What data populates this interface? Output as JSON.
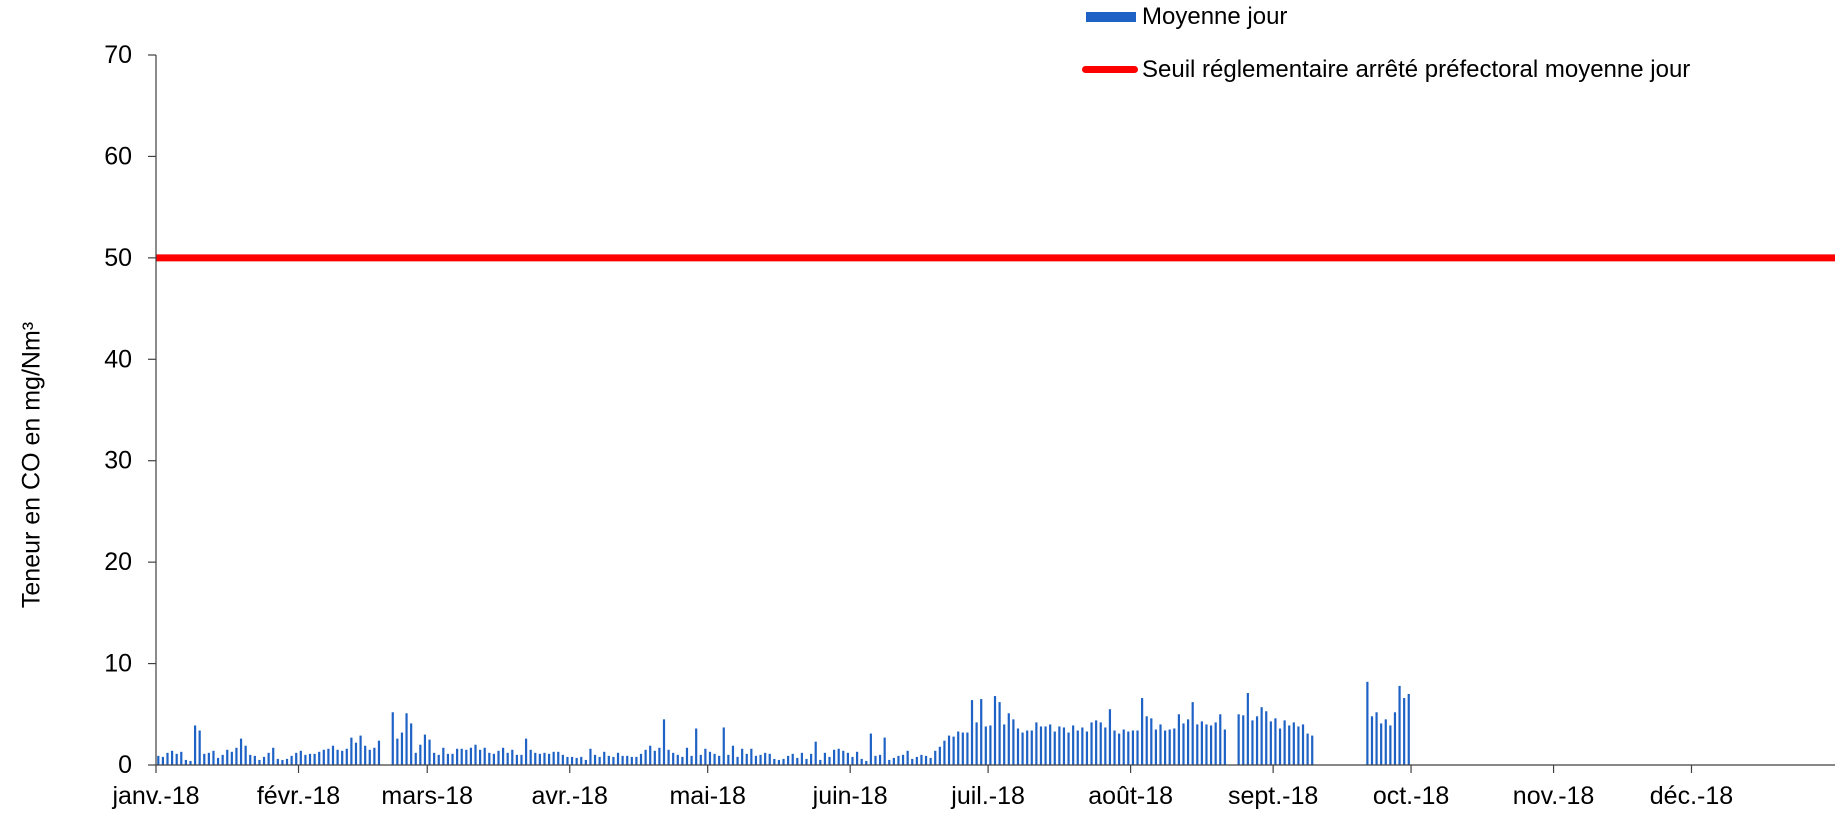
{
  "chart_data": {
    "type": "bar",
    "ylabel": "Teneur en CO en mg/Nm³",
    "xlim": [
      "2018-01-01",
      "2019-01-01"
    ],
    "ylim": [
      0,
      70
    ],
    "grid": false,
    "legend": {
      "position": "top-right"
    },
    "y_ticks": [
      0,
      10,
      20,
      30,
      40,
      50,
      60,
      70
    ],
    "x_ticks": [
      {
        "date": "2018-01-01",
        "label": "janv.-18"
      },
      {
        "date": "2018-02-01",
        "label": "févr.-18"
      },
      {
        "date": "2018-03-01",
        "label": "mars-18"
      },
      {
        "date": "2018-04-01",
        "label": "avr.-18"
      },
      {
        "date": "2018-05-01",
        "label": "mai-18"
      },
      {
        "date": "2018-06-01",
        "label": "juin-18"
      },
      {
        "date": "2018-07-01",
        "label": "juil.-18"
      },
      {
        "date": "2018-08-01",
        "label": "août-18"
      },
      {
        "date": "2018-09-01",
        "label": "sept.-18"
      },
      {
        "date": "2018-10-01",
        "label": "oct.-18"
      },
      {
        "date": "2018-11-01",
        "label": "nov.-18"
      },
      {
        "date": "2018-12-01",
        "label": "déc.-18"
      }
    ],
    "series": [
      {
        "name": "Moyenne jour",
        "type": "bar",
        "color": "#1F62C6",
        "points": [
          [
            "2018-01-01",
            0.9
          ],
          [
            "2018-01-02",
            0.8
          ],
          [
            "2018-01-03",
            1.2
          ],
          [
            "2018-01-04",
            1.4
          ],
          [
            "2018-01-05",
            1.1
          ],
          [
            "2018-01-06",
            1.3
          ],
          [
            "2018-01-07",
            0.5
          ],
          [
            "2018-01-08",
            0.4
          ],
          [
            "2018-01-09",
            3.9
          ],
          [
            "2018-01-10",
            3.4
          ],
          [
            "2018-01-11",
            1.1
          ],
          [
            "2018-01-12",
            1.2
          ],
          [
            "2018-01-13",
            1.4
          ],
          [
            "2018-01-14",
            0.7
          ],
          [
            "2018-01-15",
            1.0
          ],
          [
            "2018-01-16",
            1.5
          ],
          [
            "2018-01-17",
            1.3
          ],
          [
            "2018-01-18",
            1.7
          ],
          [
            "2018-01-19",
            2.6
          ],
          [
            "2018-01-20",
            1.9
          ],
          [
            "2018-01-21",
            1.0
          ],
          [
            "2018-01-22",
            0.9
          ],
          [
            "2018-01-23",
            0.5
          ],
          [
            "2018-01-24",
            0.8
          ],
          [
            "2018-01-25",
            1.2
          ],
          [
            "2018-01-26",
            1.7
          ],
          [
            "2018-01-27",
            0.6
          ],
          [
            "2018-01-28",
            0.5
          ],
          [
            "2018-01-29",
            0.6
          ],
          [
            "2018-01-30",
            0.9
          ],
          [
            "2018-01-31",
            1.2
          ],
          [
            "2018-02-01",
            1.4
          ],
          [
            "2018-02-02",
            1.0
          ],
          [
            "2018-02-03",
            1.1
          ],
          [
            "2018-02-04",
            1.1
          ],
          [
            "2018-02-05",
            1.3
          ],
          [
            "2018-02-06",
            1.5
          ],
          [
            "2018-02-07",
            1.6
          ],
          [
            "2018-02-08",
            1.9
          ],
          [
            "2018-02-09",
            1.5
          ],
          [
            "2018-02-10",
            1.4
          ],
          [
            "2018-02-11",
            1.6
          ],
          [
            "2018-02-12",
            2.7
          ],
          [
            "2018-02-13",
            2.2
          ],
          [
            "2018-02-14",
            2.9
          ],
          [
            "2018-02-15",
            1.9
          ],
          [
            "2018-02-16",
            1.5
          ],
          [
            "2018-02-17",
            1.7
          ],
          [
            "2018-02-18",
            2.4
          ],
          [
            "2018-02-21",
            5.2
          ],
          [
            "2018-02-22",
            2.6
          ],
          [
            "2018-02-23",
            3.2
          ],
          [
            "2018-02-24",
            5.1
          ],
          [
            "2018-02-25",
            4.1
          ],
          [
            "2018-02-26",
            1.2
          ],
          [
            "2018-02-27",
            2.0
          ],
          [
            "2018-02-28",
            3.0
          ],
          [
            "2018-03-01",
            2.5
          ],
          [
            "2018-03-02",
            1.2
          ],
          [
            "2018-03-03",
            1.0
          ],
          [
            "2018-03-04",
            1.7
          ],
          [
            "2018-03-05",
            1.1
          ],
          [
            "2018-03-06",
            1.1
          ],
          [
            "2018-03-07",
            1.6
          ],
          [
            "2018-03-08",
            1.6
          ],
          [
            "2018-03-09",
            1.5
          ],
          [
            "2018-03-10",
            1.7
          ],
          [
            "2018-03-11",
            2.0
          ],
          [
            "2018-03-12",
            1.5
          ],
          [
            "2018-03-13",
            1.7
          ],
          [
            "2018-03-14",
            1.2
          ],
          [
            "2018-03-15",
            1.1
          ],
          [
            "2018-03-16",
            1.4
          ],
          [
            "2018-03-17",
            1.7
          ],
          [
            "2018-03-18",
            1.2
          ],
          [
            "2018-03-19",
            1.5
          ],
          [
            "2018-03-20",
            1.0
          ],
          [
            "2018-03-21",
            1.0
          ],
          [
            "2018-03-22",
            2.6
          ],
          [
            "2018-03-23",
            1.5
          ],
          [
            "2018-03-24",
            1.2
          ],
          [
            "2018-03-25",
            1.1
          ],
          [
            "2018-03-26",
            1.2
          ],
          [
            "2018-03-27",
            1.1
          ],
          [
            "2018-03-28",
            1.3
          ],
          [
            "2018-03-29",
            1.3
          ],
          [
            "2018-03-30",
            1.0
          ],
          [
            "2018-03-31",
            0.8
          ],
          [
            "2018-04-01",
            0.8
          ],
          [
            "2018-04-02",
            0.7
          ],
          [
            "2018-04-03",
            0.8
          ],
          [
            "2018-04-04",
            0.5
          ],
          [
            "2018-04-05",
            1.6
          ],
          [
            "2018-04-06",
            1.0
          ],
          [
            "2018-04-07",
            0.8
          ],
          [
            "2018-04-08",
            1.3
          ],
          [
            "2018-04-09",
            0.9
          ],
          [
            "2018-04-10",
            0.8
          ],
          [
            "2018-04-11",
            1.2
          ],
          [
            "2018-04-12",
            0.9
          ],
          [
            "2018-04-13",
            0.9
          ],
          [
            "2018-04-14",
            0.8
          ],
          [
            "2018-04-15",
            0.8
          ],
          [
            "2018-04-16",
            1.1
          ],
          [
            "2018-04-17",
            1.5
          ],
          [
            "2018-04-18",
            1.9
          ],
          [
            "2018-04-19",
            1.4
          ],
          [
            "2018-04-20",
            1.7
          ],
          [
            "2018-04-21",
            4.5
          ],
          [
            "2018-04-22",
            1.5
          ],
          [
            "2018-04-23",
            1.2
          ],
          [
            "2018-04-24",
            1.0
          ],
          [
            "2018-04-25",
            0.8
          ],
          [
            "2018-04-26",
            1.7
          ],
          [
            "2018-04-27",
            0.9
          ],
          [
            "2018-04-28",
            3.6
          ],
          [
            "2018-04-29",
            1.0
          ],
          [
            "2018-04-30",
            1.6
          ],
          [
            "2018-05-01",
            1.3
          ],
          [
            "2018-05-02",
            1.1
          ],
          [
            "2018-05-03",
            0.9
          ],
          [
            "2018-05-04",
            3.7
          ],
          [
            "2018-05-05",
            1.0
          ],
          [
            "2018-05-06",
            1.9
          ],
          [
            "2018-05-07",
            0.8
          ],
          [
            "2018-05-08",
            1.6
          ],
          [
            "2018-05-09",
            1.1
          ],
          [
            "2018-05-10",
            1.6
          ],
          [
            "2018-05-11",
            0.9
          ],
          [
            "2018-05-12",
            1.0
          ],
          [
            "2018-05-13",
            1.2
          ],
          [
            "2018-05-14",
            1.1
          ],
          [
            "2018-05-15",
            0.6
          ],
          [
            "2018-05-16",
            0.5
          ],
          [
            "2018-05-17",
            0.6
          ],
          [
            "2018-05-18",
            0.9
          ],
          [
            "2018-05-19",
            1.1
          ],
          [
            "2018-05-20",
            0.7
          ],
          [
            "2018-05-21",
            1.2
          ],
          [
            "2018-05-22",
            0.6
          ],
          [
            "2018-05-23",
            1.1
          ],
          [
            "2018-05-24",
            2.3
          ],
          [
            "2018-05-25",
            0.5
          ],
          [
            "2018-05-26",
            1.2
          ],
          [
            "2018-05-27",
            0.8
          ],
          [
            "2018-05-28",
            1.5
          ],
          [
            "2018-05-29",
            1.6
          ],
          [
            "2018-05-30",
            1.4
          ],
          [
            "2018-05-31",
            1.2
          ],
          [
            "2018-06-01",
            0.8
          ],
          [
            "2018-06-02",
            1.3
          ],
          [
            "2018-06-03",
            0.6
          ],
          [
            "2018-06-04",
            0.4
          ],
          [
            "2018-06-05",
            3.1
          ],
          [
            "2018-06-06",
            0.9
          ],
          [
            "2018-06-07",
            1.0
          ],
          [
            "2018-06-08",
            2.7
          ],
          [
            "2018-06-09",
            0.5
          ],
          [
            "2018-06-10",
            0.7
          ],
          [
            "2018-06-11",
            0.9
          ],
          [
            "2018-06-12",
            1.0
          ],
          [
            "2018-06-13",
            1.4
          ],
          [
            "2018-06-14",
            0.6
          ],
          [
            "2018-06-15",
            0.8
          ],
          [
            "2018-06-16",
            1.0
          ],
          [
            "2018-06-17",
            0.9
          ],
          [
            "2018-06-18",
            0.7
          ],
          [
            "2018-06-19",
            1.4
          ],
          [
            "2018-06-20",
            1.8
          ],
          [
            "2018-06-21",
            2.4
          ],
          [
            "2018-06-22",
            2.9
          ],
          [
            "2018-06-23",
            2.8
          ],
          [
            "2018-06-24",
            3.3
          ],
          [
            "2018-06-25",
            3.2
          ],
          [
            "2018-06-26",
            3.2
          ],
          [
            "2018-06-27",
            6.4
          ],
          [
            "2018-06-28",
            4.2
          ],
          [
            "2018-06-29",
            6.5
          ],
          [
            "2018-06-30",
            3.8
          ],
          [
            "2018-07-01",
            3.9
          ],
          [
            "2018-07-02",
            6.8
          ],
          [
            "2018-07-03",
            6.2
          ],
          [
            "2018-07-04",
            4.0
          ],
          [
            "2018-07-05",
            5.1
          ],
          [
            "2018-07-06",
            4.5
          ],
          [
            "2018-07-07",
            3.6
          ],
          [
            "2018-07-08",
            3.2
          ],
          [
            "2018-07-09",
            3.4
          ],
          [
            "2018-07-10",
            3.4
          ],
          [
            "2018-07-11",
            4.2
          ],
          [
            "2018-07-12",
            3.8
          ],
          [
            "2018-07-13",
            3.8
          ],
          [
            "2018-07-14",
            4.0
          ],
          [
            "2018-07-15",
            3.3
          ],
          [
            "2018-07-16",
            3.8
          ],
          [
            "2018-07-17",
            3.7
          ],
          [
            "2018-07-18",
            3.2
          ],
          [
            "2018-07-19",
            3.9
          ],
          [
            "2018-07-20",
            3.4
          ],
          [
            "2018-07-21",
            3.7
          ],
          [
            "2018-07-22",
            3.3
          ],
          [
            "2018-07-23",
            4.2
          ],
          [
            "2018-07-24",
            4.4
          ],
          [
            "2018-07-25",
            4.2
          ],
          [
            "2018-07-26",
            3.7
          ],
          [
            "2018-07-27",
            5.5
          ],
          [
            "2018-07-28",
            3.4
          ],
          [
            "2018-07-29",
            3.1
          ],
          [
            "2018-07-30",
            3.5
          ],
          [
            "2018-07-31",
            3.3
          ],
          [
            "2018-08-01",
            3.4
          ],
          [
            "2018-08-02",
            3.4
          ],
          [
            "2018-08-03",
            6.6
          ],
          [
            "2018-08-04",
            4.8
          ],
          [
            "2018-08-05",
            4.6
          ],
          [
            "2018-08-06",
            3.5
          ],
          [
            "2018-08-07",
            4.0
          ],
          [
            "2018-08-08",
            3.4
          ],
          [
            "2018-08-09",
            3.5
          ],
          [
            "2018-08-10",
            3.6
          ],
          [
            "2018-08-11",
            5.0
          ],
          [
            "2018-08-12",
            4.1
          ],
          [
            "2018-08-13",
            4.5
          ],
          [
            "2018-08-14",
            6.2
          ],
          [
            "2018-08-15",
            4.0
          ],
          [
            "2018-08-16",
            4.3
          ],
          [
            "2018-08-17",
            4.0
          ],
          [
            "2018-08-18",
            3.9
          ],
          [
            "2018-08-19",
            4.2
          ],
          [
            "2018-08-20",
            5.0
          ],
          [
            "2018-08-21",
            3.5
          ],
          [
            "2018-08-24",
            5.0
          ],
          [
            "2018-08-25",
            4.9
          ],
          [
            "2018-08-26",
            7.1
          ],
          [
            "2018-08-27",
            4.4
          ],
          [
            "2018-08-28",
            4.8
          ],
          [
            "2018-08-29",
            5.7
          ],
          [
            "2018-08-30",
            5.3
          ],
          [
            "2018-08-31",
            4.3
          ],
          [
            "2018-09-01",
            4.6
          ],
          [
            "2018-09-02",
            3.6
          ],
          [
            "2018-09-03",
            4.4
          ],
          [
            "2018-09-04",
            3.9
          ],
          [
            "2018-09-05",
            4.2
          ],
          [
            "2018-09-06",
            3.8
          ],
          [
            "2018-09-07",
            4.0
          ],
          [
            "2018-09-08",
            3.1
          ],
          [
            "2018-09-09",
            2.9
          ],
          [
            "2018-09-21",
            8.2
          ],
          [
            "2018-09-22",
            4.8
          ],
          [
            "2018-09-23",
            5.2
          ],
          [
            "2018-09-24",
            4.1
          ],
          [
            "2018-09-25",
            4.5
          ],
          [
            "2018-09-26",
            3.9
          ],
          [
            "2018-09-27",
            5.2
          ],
          [
            "2018-09-28",
            7.8
          ],
          [
            "2018-09-29",
            6.6
          ],
          [
            "2018-09-30",
            7.0
          ]
        ]
      },
      {
        "name": "Seuil réglementaire arrêté préfectoral moyenne jour",
        "type": "line",
        "color": "#FF0000",
        "y": 50
      }
    ]
  }
}
